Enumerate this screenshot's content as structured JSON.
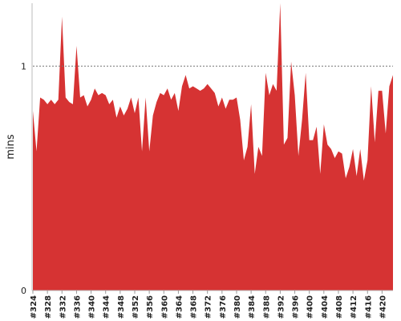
{
  "chart_data": {
    "type": "area",
    "y_label": "mins",
    "color": "#d63333",
    "categories": [
      "#324",
      null,
      null,
      null,
      "#328",
      null,
      null,
      null,
      "#332",
      null,
      null,
      null,
      "#336",
      null,
      null,
      null,
      "#340",
      null,
      null,
      null,
      "#344",
      null,
      null,
      null,
      "#348",
      null,
      null,
      null,
      "#352",
      null,
      null,
      null,
      "#356",
      null,
      null,
      null,
      "#360",
      null,
      null,
      null,
      "#364",
      null,
      null,
      null,
      "#368",
      null,
      null,
      null,
      "#372",
      null,
      null,
      null,
      "#376",
      null,
      null,
      null,
      "#380",
      null,
      null,
      null,
      "#384",
      null,
      null,
      null,
      "#388",
      null,
      null,
      null,
      "#392",
      null,
      null,
      null,
      "#396",
      null,
      null,
      null,
      "#400",
      null,
      null,
      null,
      "#404",
      null,
      null,
      null,
      "#408",
      null,
      null,
      null,
      "#412",
      null,
      null,
      null,
      "#416",
      null,
      null,
      null,
      "#420",
      null,
      null,
      null
    ],
    "values": [
      0.8,
      0.62,
      0.86,
      0.85,
      0.83,
      0.85,
      0.83,
      0.85,
      1.22,
      0.86,
      0.84,
      0.83,
      1.09,
      0.86,
      0.87,
      0.82,
      0.85,
      0.9,
      0.87,
      0.88,
      0.87,
      0.83,
      0.85,
      0.77,
      0.82,
      0.78,
      0.81,
      0.86,
      0.79,
      0.86,
      0.62,
      0.86,
      0.62,
      0.78,
      0.84,
      0.88,
      0.87,
      0.9,
      0.85,
      0.88,
      0.8,
      0.91,
      0.96,
      0.9,
      0.91,
      0.9,
      0.89,
      0.9,
      0.92,
      0.9,
      0.88,
      0.82,
      0.86,
      0.81,
      0.85,
      0.85,
      0.86,
      0.76,
      0.58,
      0.64,
      0.83,
      0.52,
      0.64,
      0.6,
      0.97,
      0.87,
      0.92,
      0.89,
      1.28,
      0.65,
      0.68,
      1.02,
      0.87,
      0.6,
      0.76,
      0.97,
      0.67,
      0.67,
      0.73,
      0.52,
      0.74,
      0.65,
      0.63,
      0.59,
      0.62,
      0.61,
      0.5,
      0.55,
      0.63,
      0.51,
      0.63,
      0.49,
      0.58,
      0.91,
      0.66,
      0.89,
      0.89,
      0.7,
      0.91,
      0.96
    ],
    "ylim": [
      0,
      1.28
    ],
    "yticks": [
      0,
      1
    ],
    "grid": true
  }
}
